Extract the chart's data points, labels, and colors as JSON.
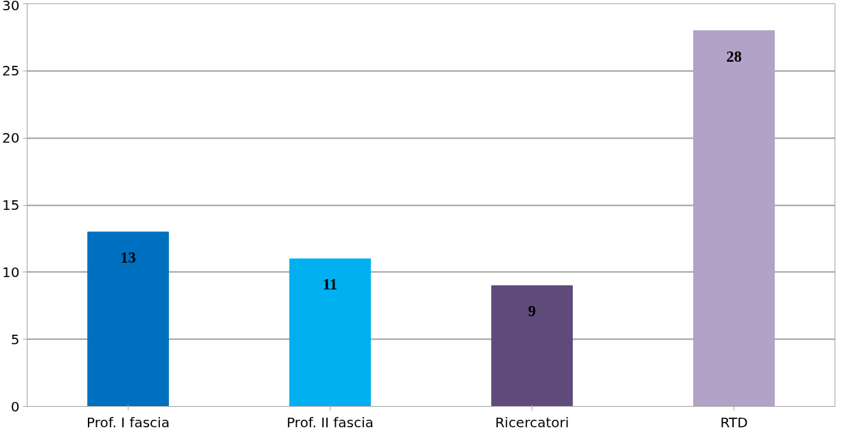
{
  "chart_data": {
    "type": "bar",
    "categories": [
      "Prof. I fascia",
      "Prof. II fascia",
      "Ricercatori",
      "RTD"
    ],
    "values": [
      13,
      11,
      9,
      28
    ],
    "colors": [
      "#0070c0",
      "#00b0f0",
      "#604a7b",
      "#b3a2c7"
    ],
    "ylim": [
      0,
      30
    ],
    "yticks": [
      0,
      5,
      10,
      15,
      20,
      25,
      30
    ],
    "grid": "y",
    "data_labels": true
  }
}
